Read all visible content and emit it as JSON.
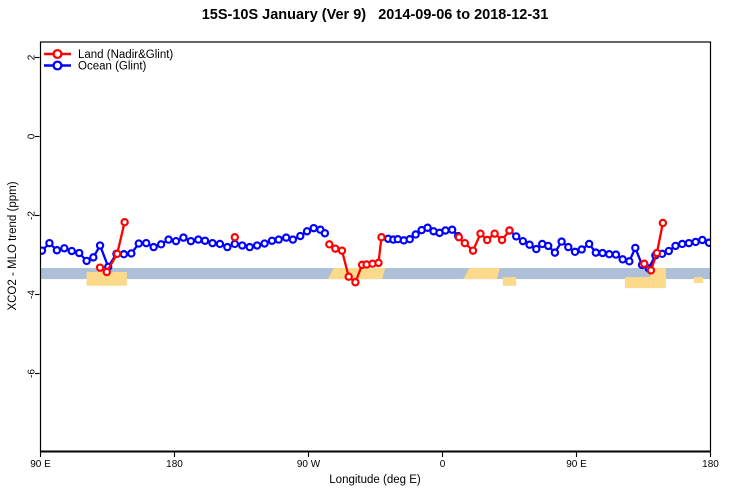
{
  "chart_data": {
    "type": "line",
    "title": "15S-10S January (Ver 9)   2014-09-06 to 2018-12-31",
    "xlabel": "Longitude (deg E)",
    "ylabel": "XCO2 - MLO trend (ppm)",
    "xlim": [
      90,
      540
    ],
    "ylim": [
      -8,
      2.4
    ],
    "x_ticks": [
      {
        "lon": 90,
        "label": "90 E"
      },
      {
        "lon": 180,
        "label": "180"
      },
      {
        "lon": 270,
        "label": "90 W"
      },
      {
        "lon": 360,
        "label": "0"
      },
      {
        "lon": 450,
        "label": "90 E"
      },
      {
        "lon": 540,
        "label": "180"
      }
    ],
    "y_ticks": [
      2,
      0,
      -2,
      -4,
      -6
    ],
    "legend": [
      {
        "name": "Land (Nadir&Glint)",
        "color": "#ff0000"
      },
      {
        "name": "Ocean (Glint)",
        "color": "#0000ff"
      }
    ],
    "series": [
      {
        "name": "Ocean (Glint)",
        "color": "#0000ff",
        "segments": [
          [
            [
              91,
              -2.89
            ],
            [
              96,
              -2.7
            ],
            [
              101,
              -2.88
            ],
            [
              106,
              -2.83
            ],
            [
              111,
              -2.9
            ],
            [
              116,
              -2.95
            ],
            [
              121,
              -3.15
            ],
            [
              125.5,
              -3.06
            ],
            [
              130,
              -2.76
            ],
            [
              135.5,
              -3.3
            ],
            [
              141,
              -2.97
            ],
            [
              146,
              -2.98
            ],
            [
              151,
              -2.96
            ],
            [
              156,
              -2.71
            ],
            [
              161,
              -2.7
            ],
            [
              166,
              -2.8
            ],
            [
              171,
              -2.73
            ],
            [
              176,
              -2.61
            ],
            [
              181,
              -2.65
            ],
            [
              186,
              -2.56
            ],
            [
              191,
              -2.65
            ],
            [
              196,
              -2.61
            ],
            [
              200.5,
              -2.64
            ],
            [
              205.5,
              -2.7
            ],
            [
              210.5,
              -2.72
            ],
            [
              215.5,
              -2.8
            ],
            [
              220.5,
              -2.72
            ],
            [
              225.5,
              -2.76
            ],
            [
              230.5,
              -2.8
            ],
            [
              235.5,
              -2.76
            ],
            [
              240.5,
              -2.71
            ],
            [
              245.5,
              -2.64
            ],
            [
              250,
              -2.61
            ],
            [
              255,
              -2.56
            ],
            [
              259.5,
              -2.61
            ],
            [
              264.5,
              -2.52
            ],
            [
              269,
              -2.4
            ],
            [
              273.5,
              -2.32
            ],
            [
              278,
              -2.36
            ],
            [
              281,
              -2.45
            ]
          ],
          [
            [
              323.5,
              -2.59
            ],
            [
              327,
              -2.61
            ],
            [
              330,
              -2.6
            ],
            [
              334,
              -2.63
            ],
            [
              338,
              -2.6
            ],
            [
              342,
              -2.48
            ],
            [
              346,
              -2.37
            ],
            [
              350,
              -2.31
            ],
            [
              354,
              -2.4
            ],
            [
              358,
              -2.44
            ],
            [
              362,
              -2.38
            ],
            [
              366.5,
              -2.36
            ],
            [
              370.5,
              -2.52
            ]
          ],
          [
            [
              405,
              -2.38
            ],
            [
              409.5,
              -2.53
            ],
            [
              414,
              -2.65
            ],
            [
              418.5,
              -2.74
            ],
            [
              423,
              -2.85
            ],
            [
              427,
              -2.72
            ],
            [
              431,
              -2.77
            ],
            [
              435.5,
              -2.94
            ],
            [
              440,
              -2.66
            ],
            [
              444.5,
              -2.8
            ],
            [
              449,
              -2.92
            ],
            [
              453.5,
              -2.86
            ],
            [
              458.5,
              -2.72
            ],
            [
              463,
              -2.94
            ],
            [
              467.5,
              -2.95
            ],
            [
              472,
              -2.98
            ],
            [
              476.5,
              -2.99
            ],
            [
              481,
              -3.11
            ],
            [
              485.5,
              -3.16
            ],
            [
              489.5,
              -2.82
            ],
            [
              494,
              -3.25
            ],
            [
              498.5,
              -3.34
            ],
            [
              503,
              -3.01
            ],
            [
              507.5,
              -2.97
            ],
            [
              512,
              -2.9
            ],
            [
              516.5,
              -2.77
            ],
            [
              521,
              -2.72
            ],
            [
              525.5,
              -2.7
            ],
            [
              530,
              -2.67
            ],
            [
              534.5,
              -2.62
            ],
            [
              539,
              -2.69
            ]
          ]
        ]
      },
      {
        "name": "Land (Nadir&Glint)",
        "color": "#ff0000",
        "segments": [
          [
            [
              130,
              -3.32
            ],
            [
              134.5,
              -3.43
            ],
            [
              141.5,
              -2.97
            ],
            [
              146.5,
              -2.17
            ]
          ],
          [
            [
              220.5,
              -2.55
            ]
          ],
          [
            [
              284,
              -2.73
            ],
            [
              288,
              -2.84
            ],
            [
              292.5,
              -2.89
            ],
            [
              297,
              -3.55
            ],
            [
              301.5,
              -3.69
            ],
            [
              306,
              -3.25
            ],
            [
              309,
              -3.24
            ],
            [
              313,
              -3.22
            ],
            [
              317,
              -3.2
            ],
            [
              319,
              -2.55
            ]
          ],
          [
            [
              371,
              -2.55
            ],
            [
              375,
              -2.7
            ],
            [
              380.5,
              -2.89
            ],
            [
              385.5,
              -2.46
            ],
            [
              390,
              -2.62
            ],
            [
              395,
              -2.46
            ],
            [
              400,
              -2.62
            ],
            [
              405,
              -2.38
            ]
          ],
          [
            [
              495.5,
              -3.22
            ],
            [
              500,
              -3.39
            ],
            [
              504,
              -2.95
            ],
            [
              508,
              -2.19
            ]
          ]
        ]
      }
    ],
    "bands": {
      "ocean_strip": {
        "color": "#aec0d8",
        "lon": [
          90,
          540
        ],
        "v": [
          -3.33,
          -3.61
        ]
      },
      "land_patches": {
        "color": "#fcda8c",
        "items": [
          {
            "lon": [
              121,
              148
            ],
            "v": [
              -3.43,
              -3.78
            ],
            "slant": false
          },
          {
            "lon": [
              283,
              321.5
            ],
            "v": [
              -3.33,
              -3.61
            ],
            "slant": true
          },
          {
            "lon": [
              374,
              398.5
            ],
            "v": [
              -3.33,
              -3.61
            ],
            "slant": true
          },
          {
            "lon": [
              400.5,
              409.5
            ],
            "v": [
              -3.56,
              -3.78
            ],
            "slant": false
          },
          {
            "lon": [
              482.5,
              499.5
            ],
            "v": [
              -3.56,
              -3.84
            ],
            "slant": false
          },
          {
            "lon": [
              499.5,
              510
            ],
            "v": [
              -3.33,
              -3.84
            ],
            "slant": false
          },
          {
            "lon": [
              529,
              535
            ],
            "v": [
              -3.56,
              -3.71
            ],
            "slant": false
          }
        ]
      }
    },
    "axis_colors": {
      "box": "#000000",
      "bottom_axis": "#3a3a3a",
      "text": "#000000"
    }
  }
}
